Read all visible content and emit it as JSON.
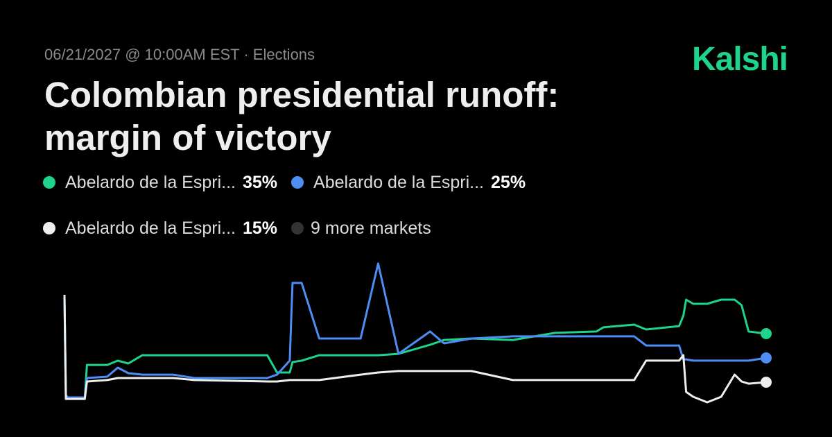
{
  "chart_data": {
    "type": "line",
    "subtitle": "06/21/2027 @ 10:00AM EST · Elections",
    "title": "Colombian presidential runoff: margin of victory",
    "brand": "Kalshi",
    "more_markets": "9 more markets",
    "xlim": [
      0,
      100
    ],
    "ylim": [
      5,
      65
    ],
    "x": [
      0,
      0.2,
      0.5,
      2.9,
      3.2,
      6.1,
      7.6,
      9.1,
      11.1,
      15.5,
      18.5,
      28.9,
      30.3,
      32.1,
      32.5,
      33.8,
      36.3,
      42.2,
      44.7,
      47.6,
      52.1,
      54.1,
      58.0,
      63.9,
      69.9,
      75.8,
      76.8,
      81.2,
      82.9,
      87.6,
      88.2,
      88.6,
      89.6,
      91.6,
      93.6,
      95.5,
      96.5,
      97.5,
      100
    ],
    "series": [
      {
        "name": "Abelardo de la Espri...",
        "color": "#1ed38b",
        "values": [
          49.6,
          9.6,
          8.7,
          8.7,
          22.1,
          22.1,
          23.9,
          22.7,
          26.1,
          26.1,
          26.1,
          26.1,
          19.0,
          19.0,
          23.3,
          23.9,
          26.1,
          26.1,
          26.1,
          26.7,
          30.4,
          32.4,
          33.0,
          32.4,
          35.3,
          35.9,
          37.6,
          38.7,
          36.7,
          38.1,
          42.4,
          49.0,
          47.3,
          47.3,
          49.0,
          49.0,
          46.7,
          35.9,
          35
        ],
        "value_labels": [
          null,
          null,
          null,
          null,
          null,
          null,
          null,
          null,
          null,
          null,
          null,
          null,
          null,
          null,
          null,
          null,
          null,
          null,
          null,
          null,
          null,
          null,
          null,
          null,
          null,
          null,
          null,
          null,
          null,
          null,
          null,
          null,
          null,
          null,
          null,
          null,
          null,
          null,
          "35%"
        ]
      },
      {
        "name": "Abelardo de la Espri...",
        "color": "#4d8ef5",
        "values": [
          49.6,
          9.6,
          8.7,
          8.7,
          16.7,
          17.3,
          21.0,
          18.7,
          18.1,
          18.1,
          16.7,
          16.7,
          18.1,
          23.9,
          55.9,
          55.9,
          33.0,
          33.0,
          63.9,
          26.7,
          35.9,
          31.0,
          33.0,
          33.9,
          33.9,
          33.9,
          33.9,
          33.9,
          30.1,
          30.1,
          24.4,
          24.4,
          23.9,
          23.9,
          23.9,
          23.9,
          23.9,
          23.9,
          25
        ],
        "value_labels": [
          null,
          null,
          null,
          null,
          null,
          null,
          null,
          null,
          null,
          null,
          null,
          null,
          null,
          null,
          null,
          null,
          null,
          null,
          null,
          null,
          null,
          null,
          null,
          null,
          null,
          null,
          null,
          null,
          null,
          null,
          null,
          null,
          null,
          null,
          null,
          null,
          null,
          null,
          "25%"
        ]
      },
      {
        "name": "Abelardo de la Espri...",
        "color": "#eeeeee",
        "values": [
          51.0,
          8.1,
          8.1,
          8.1,
          15.3,
          15.9,
          16.7,
          16.7,
          16.7,
          16.7,
          15.9,
          15.3,
          15.3,
          15.9,
          15.9,
          15.9,
          15.9,
          18.1,
          19.0,
          19.6,
          19.6,
          19.6,
          19.6,
          15.9,
          15.9,
          15.9,
          15.9,
          15.9,
          23.9,
          23.9,
          26.1,
          11.0,
          9.0,
          6.7,
          9.0,
          18.1,
          15.3,
          14.4,
          15
        ],
        "value_labels": [
          null,
          null,
          null,
          null,
          null,
          null,
          null,
          null,
          null,
          null,
          null,
          null,
          null,
          null,
          null,
          null,
          null,
          null,
          null,
          null,
          null,
          null,
          null,
          null,
          null,
          null,
          null,
          null,
          null,
          null,
          null,
          null,
          null,
          null,
          null,
          null,
          null,
          null,
          "15%"
        ]
      }
    ]
  }
}
